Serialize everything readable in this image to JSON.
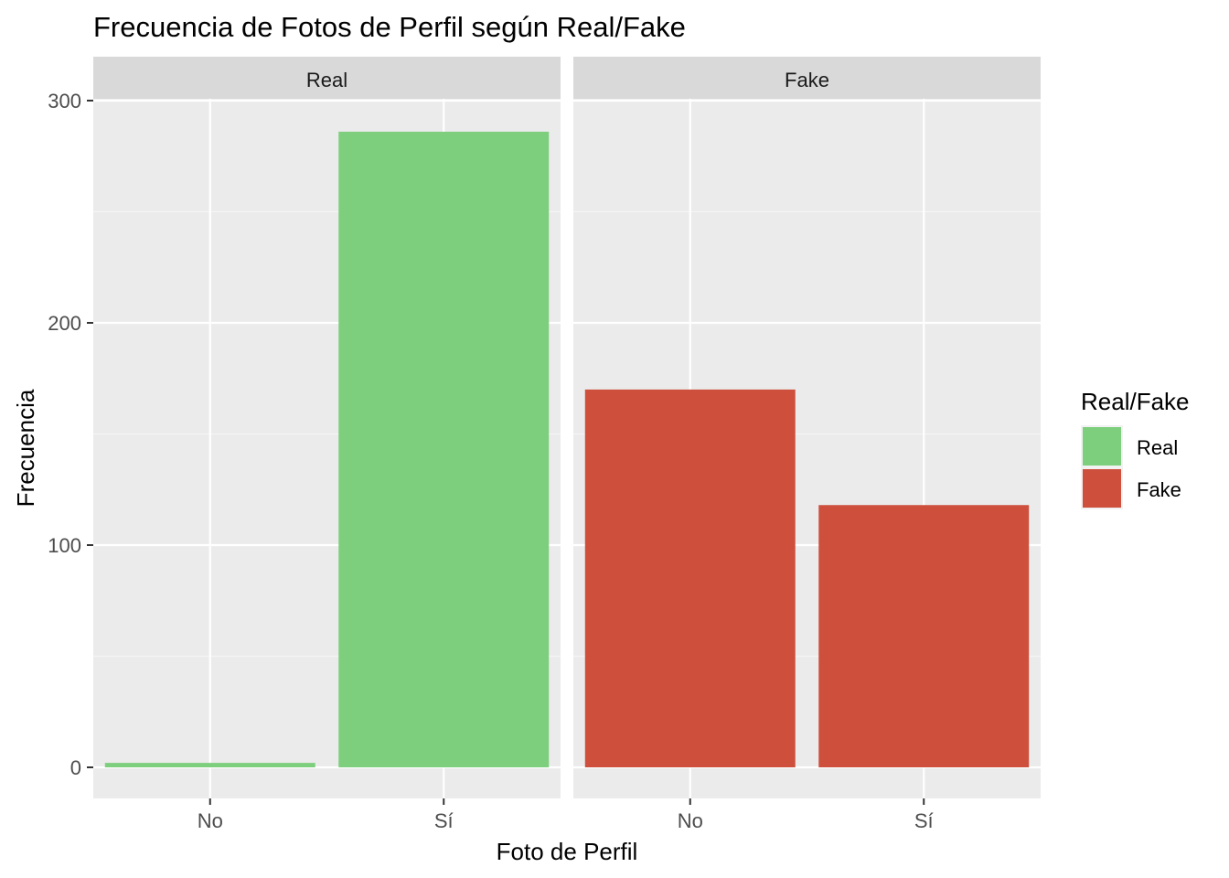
{
  "chart_data": {
    "type": "bar",
    "title": "Frecuencia de Fotos de Perfil según Real/Fake",
    "xlabel": "Foto de Perfil",
    "ylabel": "Frecuencia",
    "ylim": [
      -13.5,
      300
    ],
    "yticks": [
      0,
      100,
      200,
      300
    ],
    "grid": true,
    "legend": {
      "title": "Real/Fake",
      "placement": "right",
      "entries": [
        {
          "label": "Real",
          "color": "#7dce7d"
        },
        {
          "label": "Fake",
          "color": "#cd4f3c"
        }
      ]
    },
    "facets": [
      {
        "label": "Real",
        "color": "#7dce7d",
        "categories": [
          "No",
          "Sí"
        ],
        "values": [
          2,
          286
        ]
      },
      {
        "label": "Fake",
        "color": "#cd4f3c",
        "categories": [
          "No",
          "Sí"
        ],
        "values": [
          170,
          118
        ]
      }
    ]
  }
}
